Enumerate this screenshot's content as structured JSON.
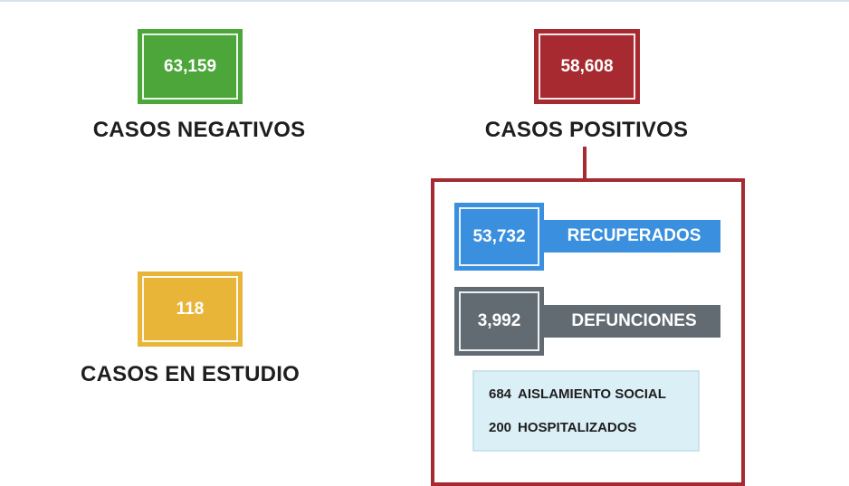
{
  "casos_negativos": {
    "value": "63,159",
    "label": "CASOS NEGATIVOS",
    "color": "#4da63a"
  },
  "casos_positivos": {
    "value": "58,608",
    "label": "CASOS POSITIVOS",
    "color": "#a72a30"
  },
  "casos_en_estudio": {
    "value": "118",
    "label": "CASOS EN ESTUDIO",
    "color": "#e8b539"
  },
  "recuperados": {
    "value": "53,732",
    "label": "RECUPERADOS",
    "color": "#3a8fde"
  },
  "defunciones": {
    "value": "3,992",
    "label": "DEFUNCIONES",
    "color": "#626b72"
  },
  "detalle": [
    {
      "value": "684",
      "label": "AISLAMIENTO SOCIAL"
    },
    {
      "value": "200",
      "label": "HOSPITALIZADOS"
    }
  ]
}
